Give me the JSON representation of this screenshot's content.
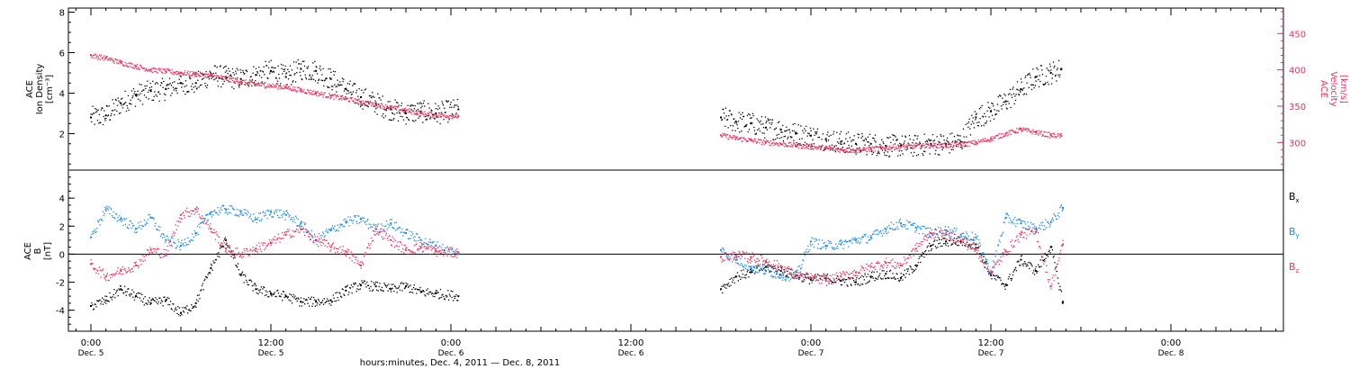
{
  "chart_data": [
    {
      "type": "scatter",
      "panel": "top",
      "ylabel_left": [
        "ACE",
        "Ion Density",
        "[cm⁻³]"
      ],
      "ylabel_right": [
        "ACE",
        "Velocity",
        "[km/s]"
      ],
      "ylim_left": [
        0.2,
        8.2
      ],
      "ylim_right": [
        262,
        485
      ],
      "yticks_left": [
        2,
        4,
        6,
        8
      ],
      "yticks_right": [
        300,
        350,
        400,
        450
      ],
      "colors": {
        "density": "#000000",
        "velocity": "#e8335f"
      },
      "segments": [
        {
          "start_hr": 0,
          "end_hr": 24.5
        },
        {
          "start_hr": 42,
          "end_hr": 64.7
        }
      ],
      "series": [
        {
          "key": "density",
          "axis": "left",
          "values": [
            [
              0.0,
              2.8
            ],
            [
              1.0,
              2.9
            ],
            [
              2.0,
              3.5
            ],
            [
              3.0,
              3.9
            ],
            [
              4.0,
              4.1
            ],
            [
              5.0,
              4.2
            ],
            [
              6.0,
              4.5
            ],
            [
              7.0,
              4.5
            ],
            [
              8.0,
              4.9
            ],
            [
              9.0,
              4.8
            ],
            [
              10.0,
              4.7
            ],
            [
              11.0,
              4.9
            ],
            [
              12.0,
              5.1
            ],
            [
              13.0,
              4.8
            ],
            [
              14.0,
              5.2
            ],
            [
              15.0,
              5.1
            ],
            [
              16.0,
              4.7
            ],
            [
              17.0,
              4.2
            ],
            [
              18.0,
              3.8
            ],
            [
              19.0,
              3.5
            ],
            [
              20.0,
              3.2
            ],
            [
              21.0,
              3.0
            ],
            [
              22.0,
              3.1
            ],
            [
              23.0,
              3.0
            ],
            [
              24.5,
              3.2
            ],
            [
              42.0,
              2.8
            ],
            [
              43.0,
              2.6
            ],
            [
              44.0,
              2.5
            ],
            [
              45.0,
              2.3
            ],
            [
              46.0,
              2.2
            ],
            [
              47.0,
              2.0
            ],
            [
              48.0,
              1.9
            ],
            [
              49.0,
              1.7
            ],
            [
              50.0,
              1.6
            ],
            [
              51.0,
              1.5
            ],
            [
              52.0,
              1.5
            ],
            [
              53.0,
              1.4
            ],
            [
              54.0,
              1.4
            ],
            [
              55.0,
              1.4
            ],
            [
              56.0,
              1.5
            ],
            [
              57.0,
              1.5
            ],
            [
              58.0,
              1.6
            ],
            [
              59.0,
              2.8
            ],
            [
              60.0,
              3.1
            ],
            [
              61.0,
              3.6
            ],
            [
              62.0,
              4.2
            ],
            [
              63.0,
              4.8
            ],
            [
              64.0,
              5.0
            ],
            [
              64.7,
              5.2
            ]
          ]
        },
        {
          "key": "velocity",
          "axis": "right",
          "values": [
            [
              0.0,
              420
            ],
            [
              1.0,
              416
            ],
            [
              2.0,
              410
            ],
            [
              3.0,
              405
            ],
            [
              4.0,
              400
            ],
            [
              5.0,
              398
            ],
            [
              6.0,
              396
            ],
            [
              7.0,
              394
            ],
            [
              8.0,
              392
            ],
            [
              9.0,
              388
            ],
            [
              10.0,
              384
            ],
            [
              11.0,
              380
            ],
            [
              12.0,
              378
            ],
            [
              13.0,
              376
            ],
            [
              14.0,
              372
            ],
            [
              15.0,
              368
            ],
            [
              16.0,
              364
            ],
            [
              17.0,
              360
            ],
            [
              18.0,
              356
            ],
            [
              19.0,
              352
            ],
            [
              20.0,
              348
            ],
            [
              21.0,
              344
            ],
            [
              22.0,
              340
            ],
            [
              23.0,
              338
            ],
            [
              24.5,
              336
            ],
            [
              42.0,
              310
            ],
            [
              43.0,
              306
            ],
            [
              44.0,
              303
            ],
            [
              45.0,
              300
            ],
            [
              46.0,
              298
            ],
            [
              47.0,
              296
            ],
            [
              48.0,
              294
            ],
            [
              49.0,
              292
            ],
            [
              50.0,
              290
            ],
            [
              51.0,
              289
            ],
            [
              52.0,
              291
            ],
            [
              53.0,
              293
            ],
            [
              54.0,
              294
            ],
            [
              55.0,
              295
            ],
            [
              56.0,
              296
            ],
            [
              57.0,
              296
            ],
            [
              58.0,
              297
            ],
            [
              59.0,
              300
            ],
            [
              60.0,
              305
            ],
            [
              61.0,
              312
            ],
            [
              62.0,
              318
            ],
            [
              63.0,
              314
            ],
            [
              64.0,
              310
            ],
            [
              64.7,
              309
            ]
          ]
        }
      ]
    },
    {
      "type": "scatter",
      "panel": "bottom",
      "ylabel_left": [
        "ACE",
        "B",
        "[nT]"
      ],
      "ylim": [
        -5.5,
        6.0
      ],
      "yticks": [
        -4,
        -2,
        0,
        2,
        4
      ],
      "zero_line": true,
      "legend": [
        {
          "label": "B",
          "sub": "x",
          "color": "#000000"
        },
        {
          "label": "B",
          "sub": "y",
          "color": "#1e88e5"
        },
        {
          "label": "B",
          "sub": "z",
          "color": "#e8335f"
        }
      ],
      "segments": [
        {
          "start_hr": 0,
          "end_hr": 24.5
        },
        {
          "start_hr": 42,
          "end_hr": 64.8
        }
      ],
      "series": [
        {
          "key": "Bx",
          "color": "#000000",
          "values": [
            [
              0,
              -3.7
            ],
            [
              1,
              -3.3
            ],
            [
              2,
              -2.5
            ],
            [
              3,
              -3.0
            ],
            [
              4,
              -3.5
            ],
            [
              5,
              -3.3
            ],
            [
              6,
              -4.2
            ],
            [
              7,
              -3.5
            ],
            [
              8,
              -1.0
            ],
            [
              9,
              1.0
            ],
            [
              10,
              -1.5
            ],
            [
              11,
              -2.5
            ],
            [
              12,
              -2.8
            ],
            [
              13,
              -3.0
            ],
            [
              14,
              -3.4
            ],
            [
              15,
              -3.4
            ],
            [
              16,
              -3.3
            ],
            [
              17,
              -2.6
            ],
            [
              18,
              -2.2
            ],
            [
              19,
              -2.3
            ],
            [
              20,
              -2.5
            ],
            [
              21,
              -2.3
            ],
            [
              22,
              -2.7
            ],
            [
              23,
              -2.8
            ],
            [
              24.5,
              -3.0
            ],
            [
              42,
              -2.5
            ],
            [
              43,
              -1.6
            ],
            [
              44,
              -1.3
            ],
            [
              45,
              -0.9
            ],
            [
              46,
              -1.2
            ],
            [
              47,
              -1.5
            ],
            [
              48,
              -1.8
            ],
            [
              49,
              -1.7
            ],
            [
              50,
              -1.9
            ],
            [
              51,
              -2.0
            ],
            [
              52,
              -1.6
            ],
            [
              53,
              -1.4
            ],
            [
              54,
              -1.7
            ],
            [
              55,
              -0.8
            ],
            [
              56,
              0.6
            ],
            [
              57,
              0.9
            ],
            [
              58,
              0.9
            ],
            [
              59,
              0.7
            ],
            [
              60,
              -1.5
            ],
            [
              61,
              -2.2
            ],
            [
              62,
              -0.4
            ],
            [
              63,
              -1.2
            ],
            [
              64,
              0.5
            ],
            [
              64.8,
              -3.4
            ]
          ]
        },
        {
          "key": "By",
          "color": "#1e88e5",
          "values": [
            [
              0,
              1.2
            ],
            [
              1,
              3.2
            ],
            [
              2,
              2.5
            ],
            [
              3,
              1.8
            ],
            [
              4,
              2.6
            ],
            [
              5,
              1.0
            ],
            [
              6,
              0.6
            ],
            [
              7,
              1.5
            ],
            [
              8,
              3.0
            ],
            [
              9,
              3.2
            ],
            [
              10,
              3.0
            ],
            [
              11,
              2.5
            ],
            [
              12,
              3.0
            ],
            [
              13,
              2.8
            ],
            [
              14,
              2.2
            ],
            [
              15,
              1.0
            ],
            [
              16,
              1.7
            ],
            [
              17,
              2.3
            ],
            [
              18,
              2.5
            ],
            [
              19,
              1.8
            ],
            [
              20,
              2.2
            ],
            [
              21,
              1.5
            ],
            [
              22,
              1.0
            ],
            [
              23,
              0.6
            ],
            [
              24.5,
              0.0
            ],
            [
              42,
              0.3
            ],
            [
              43,
              -0.4
            ],
            [
              44,
              -0.9
            ],
            [
              45,
              -1.2
            ],
            [
              46,
              -1.5
            ],
            [
              47,
              -1.6
            ],
            [
              48,
              0.9
            ],
            [
              49,
              0.6
            ],
            [
              50,
              0.7
            ],
            [
              51,
              1.0
            ],
            [
              52,
              1.2
            ],
            [
              53,
              1.8
            ],
            [
              54,
              2.2
            ],
            [
              55,
              1.9
            ],
            [
              56,
              1.5
            ],
            [
              57,
              1.7
            ],
            [
              58,
              1.4
            ],
            [
              59,
              1.2
            ],
            [
              60,
              -1.3
            ],
            [
              61,
              2.6
            ],
            [
              62,
              2.2
            ],
            [
              63,
              1.8
            ],
            [
              64,
              2.3
            ],
            [
              64.8,
              3.3
            ]
          ]
        },
        {
          "key": "Bz",
          "color": "#e8335f",
          "values": [
            [
              0,
              -0.7
            ],
            [
              1,
              -1.6
            ],
            [
              2,
              -1.2
            ],
            [
              3,
              -0.8
            ],
            [
              4,
              0.3
            ],
            [
              5,
              0.0
            ],
            [
              6,
              2.8
            ],
            [
              7,
              3.2
            ],
            [
              8,
              1.8
            ],
            [
              9,
              0.4
            ],
            [
              10,
              0.0
            ],
            [
              11,
              0.4
            ],
            [
              12,
              0.8
            ],
            [
              13,
              1.4
            ],
            [
              14,
              1.8
            ],
            [
              15,
              1.0
            ],
            [
              16,
              0.5
            ],
            [
              17,
              0.2
            ],
            [
              18,
              -0.8
            ],
            [
              19,
              1.8
            ],
            [
              20,
              1.0
            ],
            [
              21,
              0.3
            ],
            [
              22,
              0.5
            ],
            [
              23,
              0.2
            ],
            [
              24.5,
              0.1
            ],
            [
              42,
              -0.2
            ],
            [
              43,
              -0.1
            ],
            [
              44,
              -0.2
            ],
            [
              45,
              -0.5
            ],
            [
              46,
              -0.9
            ],
            [
              47,
              -1.5
            ],
            [
              48,
              -1.7
            ],
            [
              49,
              -1.9
            ],
            [
              50,
              -1.6
            ],
            [
              51,
              -1.3
            ],
            [
              52,
              -0.9
            ],
            [
              53,
              -0.6
            ],
            [
              54,
              -0.8
            ],
            [
              55,
              0.4
            ],
            [
              56,
              1.5
            ],
            [
              57,
              1.4
            ],
            [
              58,
              1.0
            ],
            [
              59,
              0.3
            ],
            [
              60,
              -1.3
            ],
            [
              61,
              0.2
            ],
            [
              62,
              1.4
            ],
            [
              63,
              1.6
            ],
            [
              64,
              -2.3
            ],
            [
              64.8,
              0.7
            ]
          ]
        }
      ]
    }
  ],
  "x_axis": {
    "xlim_hr": [
      -1.5,
      79.5
    ],
    "ticks": [
      {
        "hr": 0,
        "time": "0:00",
        "day": "Dec. 5"
      },
      {
        "hr": 12,
        "time": "12:00",
        "day": "Dec. 5"
      },
      {
        "hr": 24,
        "time": "0:00",
        "day": "Dec. 6"
      },
      {
        "hr": 36,
        "time": "12:00",
        "day": "Dec. 6"
      },
      {
        "hr": 48,
        "time": "0:00",
        "day": "Dec. 7"
      },
      {
        "hr": 60,
        "time": "12:00",
        "day": "Dec. 7"
      },
      {
        "hr": 72,
        "time": "0:00",
        "day": "Dec. 8"
      }
    ],
    "xlabel": "hours:minutes, Dec.  4, 2011 — Dec.  8, 2011"
  }
}
